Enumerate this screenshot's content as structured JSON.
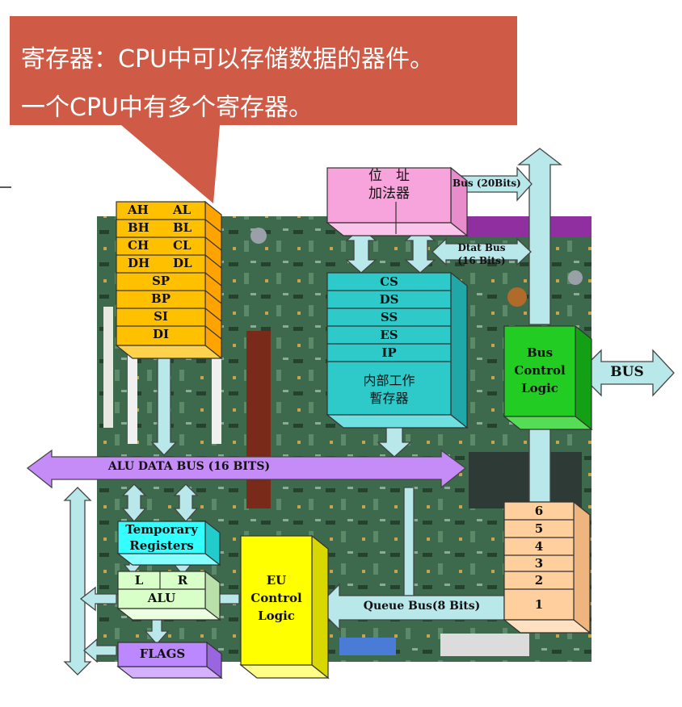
{
  "callout": {
    "line1": "寄存器：CPU中可以存储数据的器件。",
    "line2": "一个CPU中有多个寄存器。",
    "color": "#cf5a45"
  },
  "general_registers": {
    "pairs": [
      {
        "high": "AH",
        "low": "AL"
      },
      {
        "high": "BH",
        "low": "BL"
      },
      {
        "high": "CH",
        "low": "CL"
      },
      {
        "high": "DH",
        "low": "DL"
      }
    ],
    "singles": [
      "SP",
      "BP",
      "SI",
      "DI"
    ],
    "color": "#ffc000"
  },
  "address_adder": {
    "line1": "位　址",
    "line2": "加法器",
    "color": "#f7a4dc"
  },
  "segment_registers": {
    "items": [
      "CS",
      "DS",
      "SS",
      "ES",
      "IP"
    ],
    "internal_line1": "内部工作",
    "internal_line2": "暫存器",
    "color": "#2ec9c9"
  },
  "bus_control": {
    "line1": "Bus",
    "line2": "Control",
    "line3": "Logic",
    "color": "#22cc22"
  },
  "bus": {
    "external": "BUS",
    "address_bus": "Bus (20Bits)",
    "data_bus_line1": "Dtat Bus",
    "data_bus_line2": "(16 Bits)",
    "alu_data_bus": "ALU DATA BUS (16 BITS)",
    "queue_bus": "Queue  Bus(8 Bits)",
    "color": "#b8e8ea"
  },
  "queue": {
    "slots": [
      "6",
      "5",
      "4",
      "3",
      "2",
      "1"
    ],
    "color": "#ffcf9e"
  },
  "temporary_registers": {
    "line1": "Temporary",
    "line2": "Registers",
    "color": "#33ffff"
  },
  "alu": {
    "left": "L",
    "right": "R",
    "label": "ALU",
    "color": "#d8ffc8"
  },
  "flags": {
    "label": "FLAGS",
    "color": "#bb88ff"
  },
  "eu_control": {
    "line1": "EU",
    "line2": "Control",
    "line3": "Logic",
    "color": "#ffff00"
  },
  "alu_bus_color": "#c58cf7"
}
